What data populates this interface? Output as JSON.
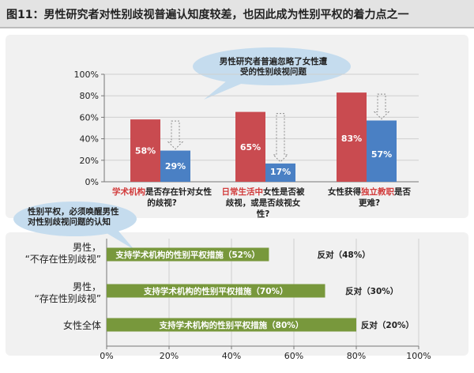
{
  "title": "图11：男性研究者对性别歧视普遍认知度较差，也因此成为性别平权的着力点之一",
  "colors": {
    "red": "#c94b50",
    "blue": "#4a80c4",
    "green": "#78983c",
    "bubble": "#c5dcee"
  },
  "chart_data": [
    {
      "type": "bar",
      "yticks": [
        "0%",
        "20%",
        "40%",
        "60%",
        "80%",
        "100%"
      ],
      "ylim": [
        0,
        100
      ],
      "categories": [
        {
          "pre": "",
          "hl": "学术机构",
          "post": "是否存在针对女性的歧视?"
        },
        {
          "pre": "",
          "hl": "日常生活中",
          "post": "女性是否被歧视，或是否歧视女性?"
        },
        {
          "pre": "女性获得",
          "hl": "独立教职",
          "post": "是否更难?"
        }
      ],
      "series": [
        {
          "values": [
            58,
            65,
            83
          ],
          "labels": [
            "58%",
            "65%",
            "83%"
          ]
        },
        {
          "values": [
            29,
            17,
            57
          ],
          "labels": [
            "29%",
            "17%",
            "57%"
          ]
        }
      ],
      "annotation": "男性研究者普遍忽略了女性遭受的性别歧视问题"
    },
    {
      "type": "bar",
      "orientation": "horizontal",
      "xticks": [
        "0%",
        "20%",
        "40%",
        "60%",
        "80%",
        "100%"
      ],
      "xlim": [
        0,
        100
      ],
      "rows": [
        {
          "label_line1": "男性，",
          "label_line2": "“不存在性别歧视”",
          "value": 52,
          "bar_text": "支持学术机构的性别平权措施（52%）",
          "oppose_text": "反对（48%）"
        },
        {
          "label_line1": "男性，",
          "label_line2": "“存在性别歧视”",
          "value": 70,
          "bar_text": "支持学术机构的性别平权措施（70%）",
          "oppose_text": "反对（30%）"
        },
        {
          "label_line1": "女性全体",
          "label_line2": "",
          "value": 80,
          "bar_text": "支持学术机构的性别平权措施（80%）",
          "oppose_text": "反对（20%）"
        }
      ],
      "annotation": "性别平权，必须唤醒男性对性别歧视问题的认知"
    }
  ]
}
